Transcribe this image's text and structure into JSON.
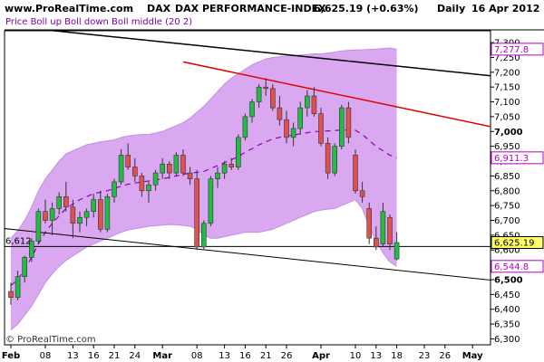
{
  "header": {
    "site": "www.ProRealTime.com",
    "ticker": "DAX",
    "name": "DAX PERFORMANCE-INDEX",
    "last_change": "6,625.19 (+0.63%)",
    "period": "Daily",
    "date": "16 Apr 2012"
  },
  "legend": "Price Boll up Boll down Boll middle (20 2)",
  "watermark": "© ProRealTime.com",
  "chart_data": {
    "type": "candlestick",
    "y_range": [
      6280,
      7340
    ],
    "y_ticks": [
      {
        "value": 6300,
        "label": "6,300",
        "major": false
      },
      {
        "value": 6350,
        "label": "6,350",
        "major": false
      },
      {
        "value": 6400,
        "label": "6,400",
        "major": false
      },
      {
        "value": 6450,
        "label": "6,450",
        "major": false
      },
      {
        "value": 6500,
        "label": "6,500",
        "major": true
      },
      {
        "value": 6550,
        "label": "6,550",
        "major": false
      },
      {
        "value": 6600,
        "label": "6,600",
        "major": false
      },
      {
        "value": 6650,
        "label": "6,650",
        "major": false
      },
      {
        "value": 6700,
        "label": "6,700",
        "major": false
      },
      {
        "value": 6750,
        "label": "6,750",
        "major": false
      },
      {
        "value": 6800,
        "label": "6,800",
        "major": false
      },
      {
        "value": 6850,
        "label": "6,850",
        "major": false
      },
      {
        "value": 6900,
        "label": "6,900",
        "major": false
      },
      {
        "value": 6950,
        "label": "6,950",
        "major": false
      },
      {
        "value": 7000,
        "label": "7,000",
        "major": true
      },
      {
        "value": 7050,
        "label": "7,050",
        "major": false
      },
      {
        "value": 7100,
        "label": "7,100",
        "major": false
      },
      {
        "value": 7150,
        "label": "7,150",
        "major": false
      },
      {
        "value": 7200,
        "label": "7,200",
        "major": false
      },
      {
        "value": 7250,
        "label": "7,250",
        "major": false
      },
      {
        "value": 7300,
        "label": "7,300",
        "major": false
      }
    ],
    "x_ticks": [
      {
        "index": 0,
        "label": "Feb",
        "major": true
      },
      {
        "index": 5,
        "label": "08",
        "major": false
      },
      {
        "index": 9,
        "label": "13",
        "major": false
      },
      {
        "index": 12,
        "label": "16",
        "major": false
      },
      {
        "index": 15,
        "label": "21",
        "major": false
      },
      {
        "index": 18,
        "label": "24",
        "major": false
      },
      {
        "index": 22,
        "label": "Mar",
        "major": true
      },
      {
        "index": 27,
        "label": "08",
        "major": false
      },
      {
        "index": 31,
        "label": "13",
        "major": false
      },
      {
        "index": 34,
        "label": "16",
        "major": false
      },
      {
        "index": 37,
        "label": "21",
        "major": false
      },
      {
        "index": 40,
        "label": "26",
        "major": false
      },
      {
        "index": 45,
        "label": "Apr",
        "major": true
      },
      {
        "index": 50,
        "label": "10",
        "major": false
      },
      {
        "index": 53,
        "label": "13",
        "major": false
      },
      {
        "index": 56,
        "label": "18",
        "major": false
      },
      {
        "index": 60,
        "label": "23",
        "major": false
      },
      {
        "index": 63,
        "label": "26",
        "major": false
      },
      {
        "index": 67,
        "label": "May",
        "major": true
      }
    ],
    "x_count": 70,
    "candles": [
      {
        "o": 6460,
        "h": 6490,
        "l": 6415,
        "c": 6440
      },
      {
        "o": 6440,
        "h": 6530,
        "l": 6430,
        "c": 6510
      },
      {
        "o": 6510,
        "h": 6580,
        "l": 6490,
        "c": 6575
      },
      {
        "o": 6575,
        "h": 6640,
        "l": 6560,
        "c": 6630
      },
      {
        "o": 6630,
        "h": 6740,
        "l": 6620,
        "c": 6730
      },
      {
        "o": 6730,
        "h": 6770,
        "l": 6690,
        "c": 6700
      },
      {
        "o": 6700,
        "h": 6760,
        "l": 6650,
        "c": 6740
      },
      {
        "o": 6740,
        "h": 6795,
        "l": 6720,
        "c": 6780
      },
      {
        "o": 6780,
        "h": 6830,
        "l": 6730,
        "c": 6745
      },
      {
        "o": 6745,
        "h": 6770,
        "l": 6640,
        "c": 6690
      },
      {
        "o": 6690,
        "h": 6730,
        "l": 6660,
        "c": 6710
      },
      {
        "o": 6710,
        "h": 6740,
        "l": 6680,
        "c": 6730
      },
      {
        "o": 6730,
        "h": 6790,
        "l": 6710,
        "c": 6770
      },
      {
        "o": 6770,
        "h": 6800,
        "l": 6660,
        "c": 6670
      },
      {
        "o": 6670,
        "h": 6790,
        "l": 6660,
        "c": 6780
      },
      {
        "o": 6780,
        "h": 6840,
        "l": 6760,
        "c": 6830
      },
      {
        "o": 6830,
        "h": 6940,
        "l": 6820,
        "c": 6920
      },
      {
        "o": 6920,
        "h": 6960,
        "l": 6870,
        "c": 6880
      },
      {
        "o": 6880,
        "h": 6910,
        "l": 6830,
        "c": 6850
      },
      {
        "o": 6850,
        "h": 6860,
        "l": 6780,
        "c": 6800
      },
      {
        "o": 6800,
        "h": 6830,
        "l": 6760,
        "c": 6820
      },
      {
        "o": 6820,
        "h": 6870,
        "l": 6800,
        "c": 6860
      },
      {
        "o": 6860,
        "h": 6910,
        "l": 6840,
        "c": 6890
      },
      {
        "o": 6890,
        "h": 6900,
        "l": 6840,
        "c": 6860
      },
      {
        "o": 6860,
        "h": 6930,
        "l": 6850,
        "c": 6920
      },
      {
        "o": 6920,
        "h": 6940,
        "l": 6850,
        "c": 6860
      },
      {
        "o": 6860,
        "h": 6880,
        "l": 6820,
        "c": 6840
      },
      {
        "o": 6840,
        "h": 6870,
        "l": 6600,
        "c": 6610
      },
      {
        "o": 6610,
        "h": 6700,
        "l": 6600,
        "c": 6690
      },
      {
        "o": 6690,
        "h": 6850,
        "l": 6680,
        "c": 6840
      },
      {
        "o": 6840,
        "h": 6880,
        "l": 6810,
        "c": 6860
      },
      {
        "o": 6860,
        "h": 6900,
        "l": 6840,
        "c": 6890
      },
      {
        "o": 6890,
        "h": 6910,
        "l": 6870,
        "c": 6880
      },
      {
        "o": 6880,
        "h": 6990,
        "l": 6870,
        "c": 6980
      },
      {
        "o": 6980,
        "h": 7060,
        "l": 6970,
        "c": 7050
      },
      {
        "o": 7050,
        "h": 7110,
        "l": 7030,
        "c": 7100
      },
      {
        "o": 7100,
        "h": 7160,
        "l": 7080,
        "c": 7150
      },
      {
        "o": 7150,
        "h": 7180,
        "l": 7120,
        "c": 7145
      },
      {
        "o": 7145,
        "h": 7160,
        "l": 7070,
        "c": 7080
      },
      {
        "o": 7080,
        "h": 7120,
        "l": 7020,
        "c": 7040
      },
      {
        "o": 7040,
        "h": 7070,
        "l": 6960,
        "c": 6980
      },
      {
        "o": 6980,
        "h": 7030,
        "l": 6950,
        "c": 7010
      },
      {
        "o": 7010,
        "h": 7100,
        "l": 6990,
        "c": 7080
      },
      {
        "o": 7080,
        "h": 7140,
        "l": 7050,
        "c": 7120
      },
      {
        "o": 7120,
        "h": 7150,
        "l": 7050,
        "c": 7060
      },
      {
        "o": 7060,
        "h": 7080,
        "l": 6950,
        "c": 6960
      },
      {
        "o": 6960,
        "h": 6980,
        "l": 6840,
        "c": 6860
      },
      {
        "o": 6860,
        "h": 6960,
        "l": 6850,
        "c": 6950
      },
      {
        "o": 6950,
        "h": 7090,
        "l": 6940,
        "c": 7080
      },
      {
        "o": 7080,
        "h": 7100,
        "l": 6960,
        "c": 6980
      },
      {
        "o": 6920,
        "h": 6940,
        "l": 6790,
        "c": 6800
      },
      {
        "o": 6800,
        "h": 6830,
        "l": 6760,
        "c": 6780
      },
      {
        "o": 6740,
        "h": 6760,
        "l": 6620,
        "c": 6640
      },
      {
        "o": 6640,
        "h": 6680,
        "l": 6600,
        "c": 6610
      },
      {
        "o": 6620,
        "h": 6760,
        "l": 6610,
        "c": 6730
      },
      {
        "o": 6710,
        "h": 6720,
        "l": 6600,
        "c": 6620
      },
      {
        "o": 6570,
        "h": 6660,
        "l": 6565,
        "c": 6625
      }
    ],
    "boll_up": [
      6640,
      6665,
      6700,
      6745,
      6800,
      6840,
      6870,
      6900,
      6925,
      6935,
      6945,
      6955,
      6960,
      6965,
      6968,
      6972,
      6980,
      6985,
      6988,
      6990,
      6990,
      6995,
      7000,
      7010,
      7020,
      7030,
      7045,
      7065,
      7085,
      7110,
      7135,
      7160,
      7180,
      7195,
      7210,
      7225,
      7235,
      7245,
      7250,
      7252,
      7255,
      7256,
      7258,
      7260,
      7262,
      7262,
      7265,
      7268,
      7272,
      7274,
      7275,
      7276,
      7277,
      7278,
      7280,
      7282,
      7277.8
    ],
    "boll_down": [
      6330,
      6350,
      6380,
      6410,
      6450,
      6490,
      6520,
      6545,
      6565,
      6580,
      6595,
      6610,
      6620,
      6630,
      6640,
      6650,
      6660,
      6668,
      6672,
      6676,
      6680,
      6682,
      6684,
      6686,
      6685,
      6683,
      6680,
      6670,
      6650,
      6640,
      6640,
      6645,
      6650,
      6655,
      6660,
      6660,
      6660,
      6665,
      6670,
      6680,
      6690,
      6700,
      6710,
      6720,
      6730,
      6735,
      6738,
      6740,
      6750,
      6760,
      6770,
      6740,
      6680,
      6630,
      6590,
      6560,
      6544.8
    ],
    "boll_mid": [
      6480,
      6500,
      6535,
      6575,
      6620,
      6660,
      6690,
      6715,
      6740,
      6755,
      6770,
      6780,
      6790,
      6795,
      6800,
      6808,
      6815,
      6822,
      6826,
      6830,
      6833,
      6836,
      6840,
      6845,
      6850,
      6855,
      6860,
      6862,
      6865,
      6875,
      6885,
      6895,
      6905,
      6915,
      6930,
      6942,
      6955,
      6965,
      6975,
      6980,
      6985,
      6988,
      6992,
      6996,
      7000,
      7000,
      7002,
      7003,
      7005,
      7005,
      7004,
      6990,
      6970,
      6950,
      6935,
      6920,
      6911.3
    ],
    "trend_lines": [
      {
        "name": "black-upper",
        "color": "#000000",
        "width": 1.5,
        "p1": {
          "i": -2,
          "v": 7360
        },
        "p2": {
          "i": 73,
          "v": 7180
        }
      },
      {
        "name": "red",
        "color": "#e00000",
        "width": 1.5,
        "p1": {
          "i": 25,
          "v": 7235
        },
        "p2": {
          "i": 73,
          "v": 7000
        }
      },
      {
        "name": "black-lower",
        "color": "#000000",
        "width": 1,
        "p1": {
          "i": -2,
          "v": 6675
        },
        "p2": {
          "i": 73,
          "v": 6490
        }
      },
      {
        "name": "horizontal-support",
        "color": "#000000",
        "width": 1,
        "p1": {
          "i": -2,
          "v": 6612
        },
        "p2": {
          "i": 73,
          "v": 6612
        }
      }
    ],
    "flags": [
      {
        "value": 7277.8,
        "label": "7,277.8",
        "text_color": "#b000c0",
        "bg": "#ffffff",
        "border": "#b000c0"
      },
      {
        "value": 6911.3,
        "label": "6,911.3",
        "text_color": "#b000c0",
        "bg": "#ffffff",
        "border": "#b000c0"
      },
      {
        "value": 6625.19,
        "label": "6,625.19",
        "text_color": "#000000",
        "bg": "#ffff66",
        "border": "#000000"
      },
      {
        "value": 6544.8,
        "label": "6,544.8",
        "text_color": "#b000c0",
        "bg": "#ffffff",
        "border": "#b000c0"
      }
    ],
    "left_label": {
      "value": 6612,
      "label": "6,612"
    },
    "colors": {
      "up": "#22bb44",
      "down": "#e05050",
      "band_fill": "#d9a8f0",
      "mid_line": "#9000b0",
      "accent_purple": "#b000c0"
    }
  }
}
